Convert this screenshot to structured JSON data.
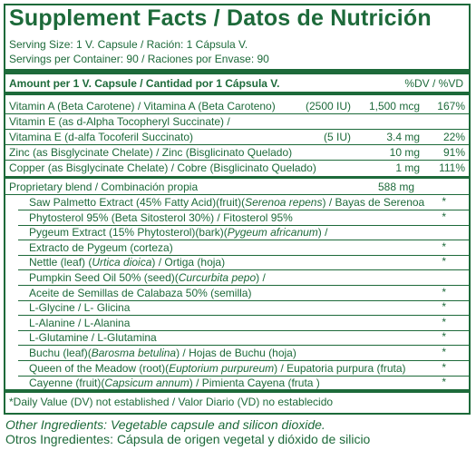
{
  "title": "Supplement Facts / Datos de Nutrición",
  "serving_size": "Serving Size: 1 V. Capsule / Ración: 1 Cápsula V.",
  "servings_per_container": "Servings per Container: 90 / Raciones por Envase: 90",
  "header": {
    "amount": "Amount per 1 V. Capsule / Cantidad por 1 Cápsula V.",
    "dv": "%DV / %VD"
  },
  "vitamins": [
    {
      "label": "Vitamin A (Beta Carotene) / Vitamina A (Beta Caroteno)",
      "iu": "(2500 IU)",
      "amount": "1,500 mcg",
      "dv": "167%"
    },
    {
      "label": "Vitamin E (as d-Alpha Tocopheryl Succinate) /",
      "iu": "",
      "amount": "",
      "dv": ""
    },
    {
      "label": "Vitamina E (d-alfa Tocoferil Succinato)",
      "iu": "(5 IU)",
      "amount": "3.4 mg",
      "dv": "22%"
    },
    {
      "label": "Zinc (as Bisglycinate Chelate) / Zinc (Bisglicinato Quelado)",
      "iu": "",
      "amount": "10 mg",
      "dv": "91%"
    },
    {
      "label": "Copper (as Bisglycinate Chelate) / Cobre (Bisglicinato Quelado)",
      "iu": "",
      "amount": "1 mg",
      "dv": "111%"
    }
  ],
  "blend": {
    "label": "Proprietary blend / Combinación propia",
    "amount": "588 mg"
  },
  "blend_items": [
    {
      "pre": "Saw Palmetto Extract (45% Fatty Acid)(fruit)(",
      "it": "Serenoa repens",
      "post": ") / Bayas de Serenoa",
      "star": "*"
    },
    {
      "pre": "Phytosterol 95% (Beta Sitosterol 30%) / Fitosterol 95%",
      "it": "",
      "post": "",
      "star": "*"
    },
    {
      "pre": "Pygeum Extract (15% Phytosterol)(bark)(",
      "it": "Pygeum africanum",
      "post": ") /",
      "star": ""
    },
    {
      "pre": "Extracto de Pygeum (corteza)",
      "it": "",
      "post": "",
      "star": "*"
    },
    {
      "pre": "Nettle (leaf) (",
      "it": "Urtica dioica",
      "post": ") / Ortiga (hoja)",
      "star": "*"
    },
    {
      "pre": "Pumpkin Seed Oil 50% (seed)(",
      "it": "Curcurbita pepo",
      "post": ") /",
      "star": ""
    },
    {
      "pre": "Aceite de Semillas de Calabaza 50% (semilla)",
      "it": "",
      "post": "",
      "star": "*"
    },
    {
      "pre": "L-Glycine / L- Glicina",
      "it": "",
      "post": "",
      "star": "*"
    },
    {
      "pre": "L-Alanine / L-Alanina",
      "it": "",
      "post": "",
      "star": "*"
    },
    {
      "pre": "L-Glutamine / L-Glutamina",
      "it": "",
      "post": "",
      "star": "*"
    },
    {
      "pre": "Buchu (leaf)(",
      "it": "Barosma betulina",
      "post": ") / Hojas de Buchu (hoja)",
      "star": "*"
    },
    {
      "pre": "Queen of the Meadow (root)(",
      "it": "Euptorium purpureum",
      "post": ") / Eupatoria purpura (fruta)",
      "star": "*"
    },
    {
      "pre": "Cayenne (fruit)(",
      "it": "Capsicum annum",
      "post": ") / Pimienta Cayena (fruta )",
      "star": "*"
    }
  ],
  "footnote": "*Daily Value (DV) not established / Valor Diario (VD) no establecido",
  "other_en": "Other Ingredients: Vegetable capsule and silicon dioxide.",
  "other_es": "Otros Ingredientes: Cápsula de origen vegetal y dióxido de silicio",
  "colors": {
    "text": "#1d6a3a",
    "background": "#ffffff"
  }
}
